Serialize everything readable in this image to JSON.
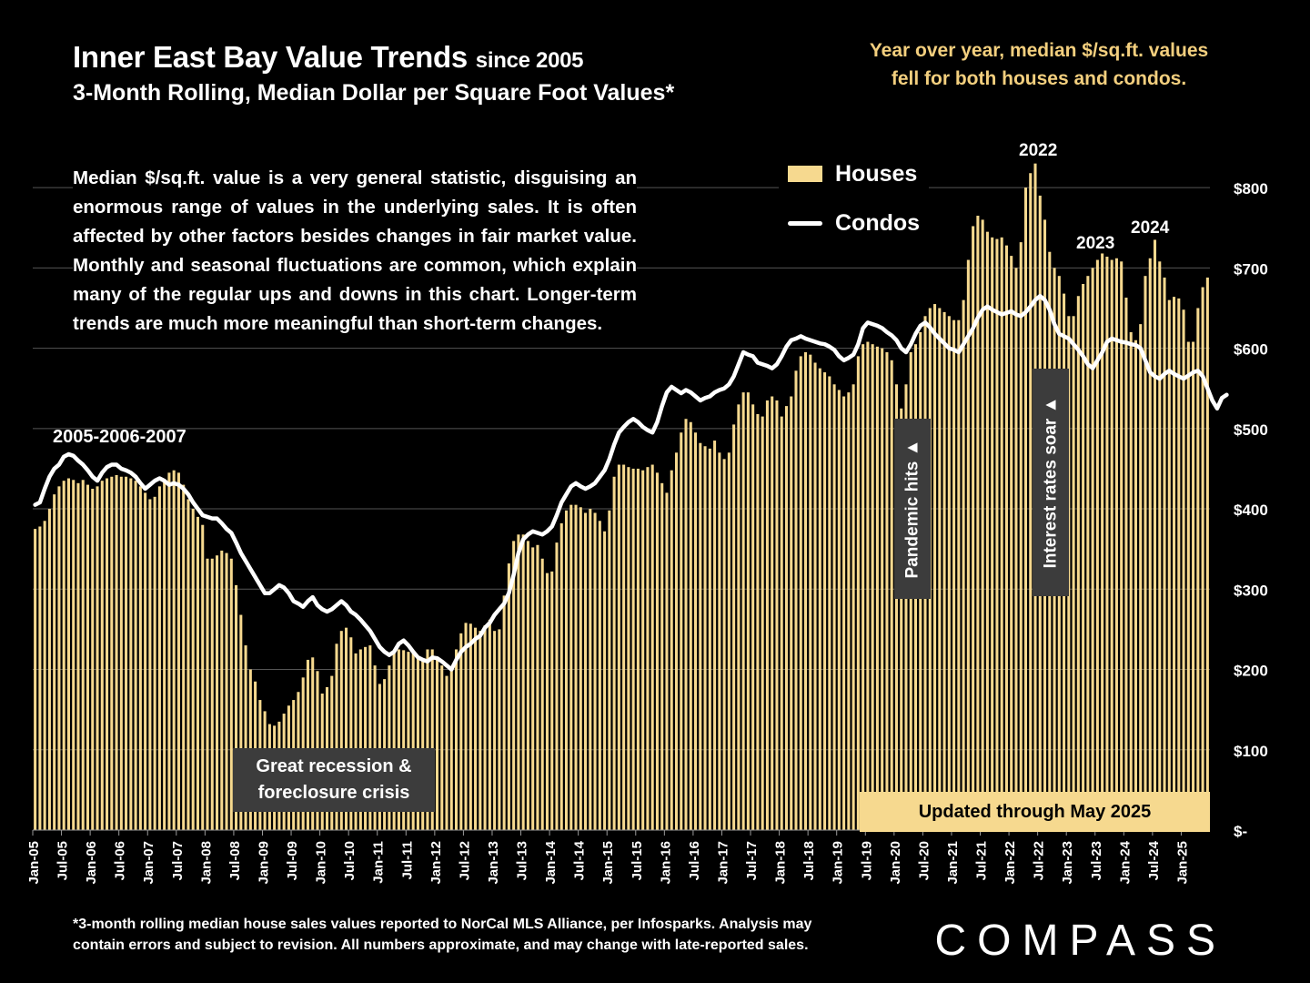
{
  "header": {
    "title_main": "Inner East Bay Value Trends",
    "title_since": "since 2005",
    "subtitle": "3-Month Rolling, Median Dollar per Square Foot Values*",
    "yoy_note_line1": "Year over year, median $/sq.ft. values",
    "yoy_note_line2": "fell for both houses and condos."
  },
  "description": "Median $/sq.ft. value is a very general statistic, disguising an enormous range of values in the underlying sales. It is often affected by other factors besides changes in fair market value. Monthly and seasonal fluctuations are common, which explain many of the regular ups and downs in this chart. Longer-term trends are much more meaningful than short-term changes.",
  "annotations": {
    "peak_2005_2007": "2005-2006-2007",
    "recession_line1": "Great recession &",
    "recession_line2": "foreclosure crisis",
    "pandemic": "Pandemic hits ▲",
    "interest": "Interest rates soar ▲",
    "y2022": "2022",
    "y2023": "2023",
    "y2024": "2024",
    "updated": "Updated through May 2025"
  },
  "footnote_line1": "*3-month rolling median house sales values reported to NorCal MLS Alliance, per Infosparks. Analysis may",
  "footnote_line2": "contain errors and subject to revision. All numbers approximate, and may change with late-reported sales.",
  "logo": "COMPASS",
  "colors": {
    "houses": "#f6d98f",
    "condos": "#ffffff",
    "background": "#000000",
    "gridline": "#555555",
    "accent_text": "#f3cf7e"
  },
  "chart_data": {
    "type": "bar",
    "start_month": "Jan-05",
    "end_month": "May-25",
    "ylim": [
      0,
      850
    ],
    "y_ticks": [
      0,
      100,
      200,
      300,
      400,
      500,
      600,
      700,
      800
    ],
    "y_tick_labels": [
      "$-",
      "$100",
      "$200",
      "$300",
      "$400",
      "$500",
      "$600",
      "$700",
      "$800"
    ],
    "x_tick_labels": [
      "Jan-05",
      "Jul-05",
      "Jan-06",
      "Jul-06",
      "Jan-07",
      "Jul-07",
      "Jan-08",
      "Jul-08",
      "Jan-09",
      "Jul-09",
      "Jan-10",
      "Jul-10",
      "Jan-11",
      "Jul-11",
      "Jan-12",
      "Jul-12",
      "Jan-13",
      "Jul-13",
      "Jan-14",
      "Jul-14",
      "Jan-15",
      "Jul-15",
      "Jan-16",
      "Jul-16",
      "Jan-17",
      "Jul-17",
      "Jan-18",
      "Jul-18",
      "Jan-19",
      "Jul-19",
      "Jan-20",
      "Jul-20",
      "Jan-21",
      "Jul-21",
      "Jan-22",
      "Jul-22",
      "Jan-23",
      "Jul-23",
      "Jan-24",
      "Jul-24",
      "Jan-25"
    ],
    "legend": [
      "Houses",
      "Condos"
    ],
    "grid": true,
    "series": [
      {
        "name": "Houses",
        "type": "bar",
        "values": [
          375,
          378,
          385,
          400,
          418,
          428,
          435,
          438,
          436,
          432,
          436,
          430,
          425,
          428,
          435,
          438,
          440,
          442,
          440,
          440,
          438,
          435,
          428,
          420,
          412,
          415,
          428,
          435,
          445,
          448,
          445,
          430,
          412,
          400,
          390,
          380,
          338,
          338,
          342,
          348,
          345,
          338,
          305,
          268,
          230,
          200,
          185,
          162,
          148,
          132,
          130,
          135,
          145,
          155,
          162,
          172,
          190,
          212,
          215,
          198,
          170,
          178,
          192,
          232,
          248,
          252,
          240,
          220,
          225,
          228,
          230,
          205,
          182,
          188,
          205,
          220,
          225,
          224,
          222,
          222,
          215,
          210,
          225,
          225,
          212,
          205,
          192,
          200,
          225,
          245,
          258,
          257,
          252,
          248,
          255,
          262,
          248,
          250,
          292,
          332,
          360,
          368,
          368,
          360,
          352,
          355,
          338,
          320,
          322,
          358,
          382,
          398,
          405,
          405,
          402,
          395,
          400,
          395,
          385,
          372,
          398,
          440,
          455,
          455,
          452,
          450,
          450,
          448,
          452,
          455,
          445,
          432,
          420,
          448,
          470,
          495,
          512,
          508,
          495,
          482,
          478,
          475,
          485,
          470,
          462,
          470,
          505,
          530,
          545,
          545,
          530,
          518,
          515,
          535,
          540,
          535,
          515,
          528,
          540,
          572,
          590,
          595,
          592,
          582,
          575,
          570,
          565,
          555,
          548,
          540,
          545,
          555,
          590,
          605,
          608,
          605,
          602,
          600,
          595,
          585,
          555,
          525,
          555,
          595,
          605,
          620,
          640,
          650,
          655,
          650,
          645,
          640,
          635,
          635,
          660,
          710,
          752,
          765,
          760,
          745,
          738,
          736,
          738,
          728,
          715,
          700,
          732,
          800,
          818,
          830,
          790,
          760,
          720,
          700,
          690,
          668,
          640,
          640,
          665,
          680,
          690,
          700,
          710,
          718,
          714,
          710,
          712,
          708,
          663,
          620,
          610,
          630,
          690,
          712,
          735,
          708,
          688,
          660,
          664,
          662,
          648,
          608,
          608,
          650,
          676,
          688
        ]
      },
      {
        "name": "Condos",
        "type": "line",
        "values": [
          405,
          408,
          425,
          440,
          450,
          455,
          465,
          468,
          466,
          460,
          455,
          448,
          440,
          435,
          445,
          452,
          455,
          455,
          450,
          448,
          445,
          440,
          432,
          425,
          430,
          435,
          438,
          435,
          430,
          432,
          430,
          425,
          418,
          408,
          400,
          392,
          390,
          388,
          388,
          382,
          375,
          370,
          358,
          345,
          335,
          325,
          315,
          305,
          295,
          295,
          300,
          305,
          302,
          295,
          285,
          282,
          278,
          285,
          290,
          280,
          275,
          272,
          275,
          280,
          285,
          280,
          272,
          268,
          262,
          255,
          248,
          238,
          228,
          222,
          218,
          222,
          232,
          236,
          230,
          222,
          215,
          212,
          210,
          215,
          214,
          210,
          205,
          200,
          212,
          222,
          228,
          232,
          238,
          242,
          252,
          258,
          268,
          275,
          282,
          295,
          318,
          345,
          362,
          368,
          372,
          370,
          368,
          372,
          378,
          392,
          408,
          418,
          428,
          432,
          428,
          425,
          428,
          432,
          440,
          448,
          462,
          480,
          495,
          502,
          508,
          512,
          508,
          502,
          498,
          495,
          508,
          528,
          545,
          552,
          548,
          544,
          548,
          545,
          540,
          535,
          538,
          540,
          545,
          548,
          550,
          555,
          565,
          580,
          595,
          592,
          590,
          582,
          580,
          578,
          575,
          580,
          590,
          602,
          610,
          612,
          615,
          612,
          610,
          608,
          606,
          605,
          602,
          598,
          590,
          585,
          588,
          592,
          605,
          625,
          632,
          630,
          628,
          625,
          620,
          616,
          610,
          600,
          595,
          605,
          618,
          628,
          632,
          626,
          618,
          612,
          606,
          600,
          598,
          595,
          605,
          615,
          625,
          638,
          648,
          652,
          648,
          645,
          642,
          644,
          646,
          642,
          640,
          645,
          652,
          660,
          665,
          660,
          648,
          630,
          618,
          615,
          612,
          605,
          598,
          590,
          580,
          575,
          585,
          595,
          608,
          612,
          610,
          608,
          607,
          605,
          604,
          600,
          585,
          570,
          565,
          562,
          568,
          572,
          568,
          565,
          562,
          566,
          570,
          572,
          565,
          550,
          535,
          525,
          538,
          542
        ]
      }
    ]
  }
}
